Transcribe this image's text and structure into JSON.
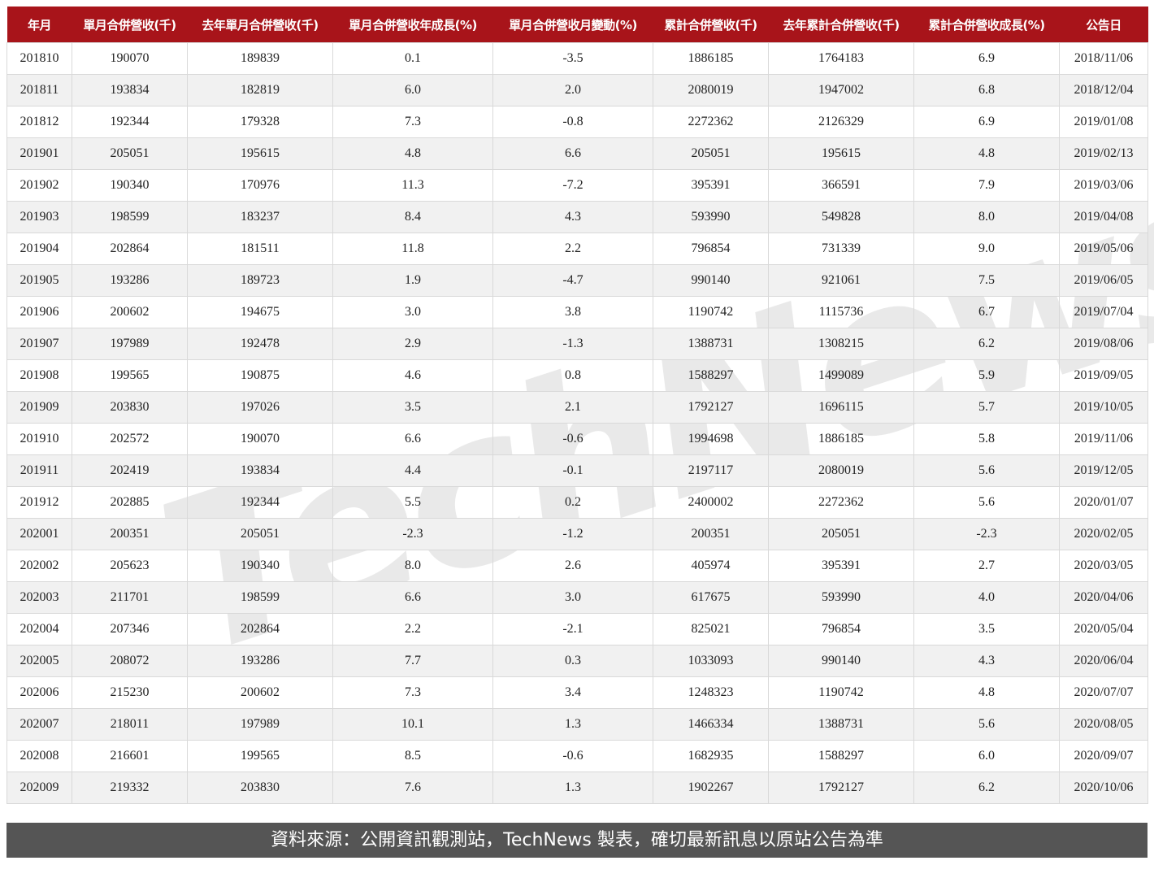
{
  "watermark": "TechNews",
  "footer": "資料來源：公開資訊觀測站，TechNews 製表，確切最新訊息以原站公告為準",
  "colors": {
    "header_bg": "#a8141a",
    "header_text": "#ffffff",
    "alt_row": "#f1f1f1",
    "footer_bg": "#555555"
  },
  "chart_data": {
    "type": "table",
    "columns": [
      "年月",
      "單月合併營收(千)",
      "去年單月合併營收(千)",
      "單月合併營收年成長(%)",
      "單月合併營收月變動(%)",
      "累計合併營收(千)",
      "去年累計合併營收(千)",
      "累計合併營收成長(%)",
      "公告日"
    ],
    "rows": [
      [
        "201810",
        "190070",
        "189839",
        "0.1",
        "-3.5",
        "1886185",
        "1764183",
        "6.9",
        "2018/11/06"
      ],
      [
        "201811",
        "193834",
        "182819",
        "6.0",
        "2.0",
        "2080019",
        "1947002",
        "6.8",
        "2018/12/04"
      ],
      [
        "201812",
        "192344",
        "179328",
        "7.3",
        "-0.8",
        "2272362",
        "2126329",
        "6.9",
        "2019/01/08"
      ],
      [
        "201901",
        "205051",
        "195615",
        "4.8",
        "6.6",
        "205051",
        "195615",
        "4.8",
        "2019/02/13"
      ],
      [
        "201902",
        "190340",
        "170976",
        "11.3",
        "-7.2",
        "395391",
        "366591",
        "7.9",
        "2019/03/06"
      ],
      [
        "201903",
        "198599",
        "183237",
        "8.4",
        "4.3",
        "593990",
        "549828",
        "8.0",
        "2019/04/08"
      ],
      [
        "201904",
        "202864",
        "181511",
        "11.8",
        "2.2",
        "796854",
        "731339",
        "9.0",
        "2019/05/06"
      ],
      [
        "201905",
        "193286",
        "189723",
        "1.9",
        "-4.7",
        "990140",
        "921061",
        "7.5",
        "2019/06/05"
      ],
      [
        "201906",
        "200602",
        "194675",
        "3.0",
        "3.8",
        "1190742",
        "1115736",
        "6.7",
        "2019/07/04"
      ],
      [
        "201907",
        "197989",
        "192478",
        "2.9",
        "-1.3",
        "1388731",
        "1308215",
        "6.2",
        "2019/08/06"
      ],
      [
        "201908",
        "199565",
        "190875",
        "4.6",
        "0.8",
        "1588297",
        "1499089",
        "5.9",
        "2019/09/05"
      ],
      [
        "201909",
        "203830",
        "197026",
        "3.5",
        "2.1",
        "1792127",
        "1696115",
        "5.7",
        "2019/10/05"
      ],
      [
        "201910",
        "202572",
        "190070",
        "6.6",
        "-0.6",
        "1994698",
        "1886185",
        "5.8",
        "2019/11/06"
      ],
      [
        "201911",
        "202419",
        "193834",
        "4.4",
        "-0.1",
        "2197117",
        "2080019",
        "5.6",
        "2019/12/05"
      ],
      [
        "201912",
        "202885",
        "192344",
        "5.5",
        "0.2",
        "2400002",
        "2272362",
        "5.6",
        "2020/01/07"
      ],
      [
        "202001",
        "200351",
        "205051",
        "-2.3",
        "-1.2",
        "200351",
        "205051",
        "-2.3",
        "2020/02/05"
      ],
      [
        "202002",
        "205623",
        "190340",
        "8.0",
        "2.6",
        "405974",
        "395391",
        "2.7",
        "2020/03/05"
      ],
      [
        "202003",
        "211701",
        "198599",
        "6.6",
        "3.0",
        "617675",
        "593990",
        "4.0",
        "2020/04/06"
      ],
      [
        "202004",
        "207346",
        "202864",
        "2.2",
        "-2.1",
        "825021",
        "796854",
        "3.5",
        "2020/05/04"
      ],
      [
        "202005",
        "208072",
        "193286",
        "7.7",
        "0.3",
        "1033093",
        "990140",
        "4.3",
        "2020/06/04"
      ],
      [
        "202006",
        "215230",
        "200602",
        "7.3",
        "3.4",
        "1248323",
        "1190742",
        "4.8",
        "2020/07/07"
      ],
      [
        "202007",
        "218011",
        "197989",
        "10.1",
        "1.3",
        "1466334",
        "1388731",
        "5.6",
        "2020/08/05"
      ],
      [
        "202008",
        "216601",
        "199565",
        "8.5",
        "-0.6",
        "1682935",
        "1588297",
        "6.0",
        "2020/09/07"
      ],
      [
        "202009",
        "219332",
        "203830",
        "7.6",
        "1.3",
        "1902267",
        "1792127",
        "6.2",
        "2020/10/06"
      ]
    ]
  }
}
